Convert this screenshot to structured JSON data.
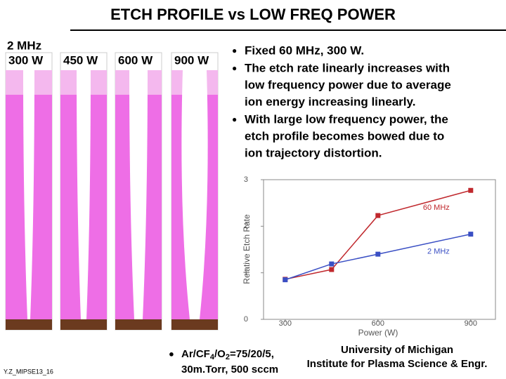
{
  "title": "ETCH PROFILE vs LOW FREQ POWER",
  "panels": {
    "header": "2 MHz",
    "labels": [
      "300 W",
      "450 W",
      "600 W",
      "900 W"
    ]
  },
  "bullets": [
    [
      "Fixed 60 MHz, 300 W."
    ],
    [
      "The etch rate linearly increases with",
      "low frequency power due to average",
      "ion energy increasing linearly."
    ],
    [
      "With large low frequency power, the",
      "etch profile becomes bowed due to",
      "ion trajectory distortion."
    ]
  ],
  "chart_data": {
    "type": "line",
    "x_label": "Power (W)",
    "y_label": "Relative Etch Rate",
    "xlim": [
      230,
      980
    ],
    "xticks": [
      300,
      600,
      900
    ],
    "ylim": [
      0,
      3
    ],
    "yticks": [
      0,
      1,
      2,
      3
    ],
    "series": [
      {
        "name": "60 MHz",
        "color": "#c0282d",
        "x": [
          300,
          450,
          600,
          900
        ],
        "values": [
          0.86,
          1.07,
          2.23,
          2.77
        ]
      },
      {
        "name": "2 MHz",
        "color": "#3a4fc4",
        "x": [
          300,
          450,
          600,
          900
        ],
        "values": [
          0.85,
          1.19,
          1.4,
          1.83
        ]
      }
    ]
  },
  "conditions": {
    "line1": [
      "Ar/CF",
      "4",
      "/O",
      "2",
      "=75/20/5,"
    ],
    "line2": "30m.Torr, 500 sccm"
  },
  "affiliation": [
    "University of Michigan",
    "Institute for Plasma Science & Engr."
  ],
  "footer_id": "Y.Z_MIPSE13_16"
}
